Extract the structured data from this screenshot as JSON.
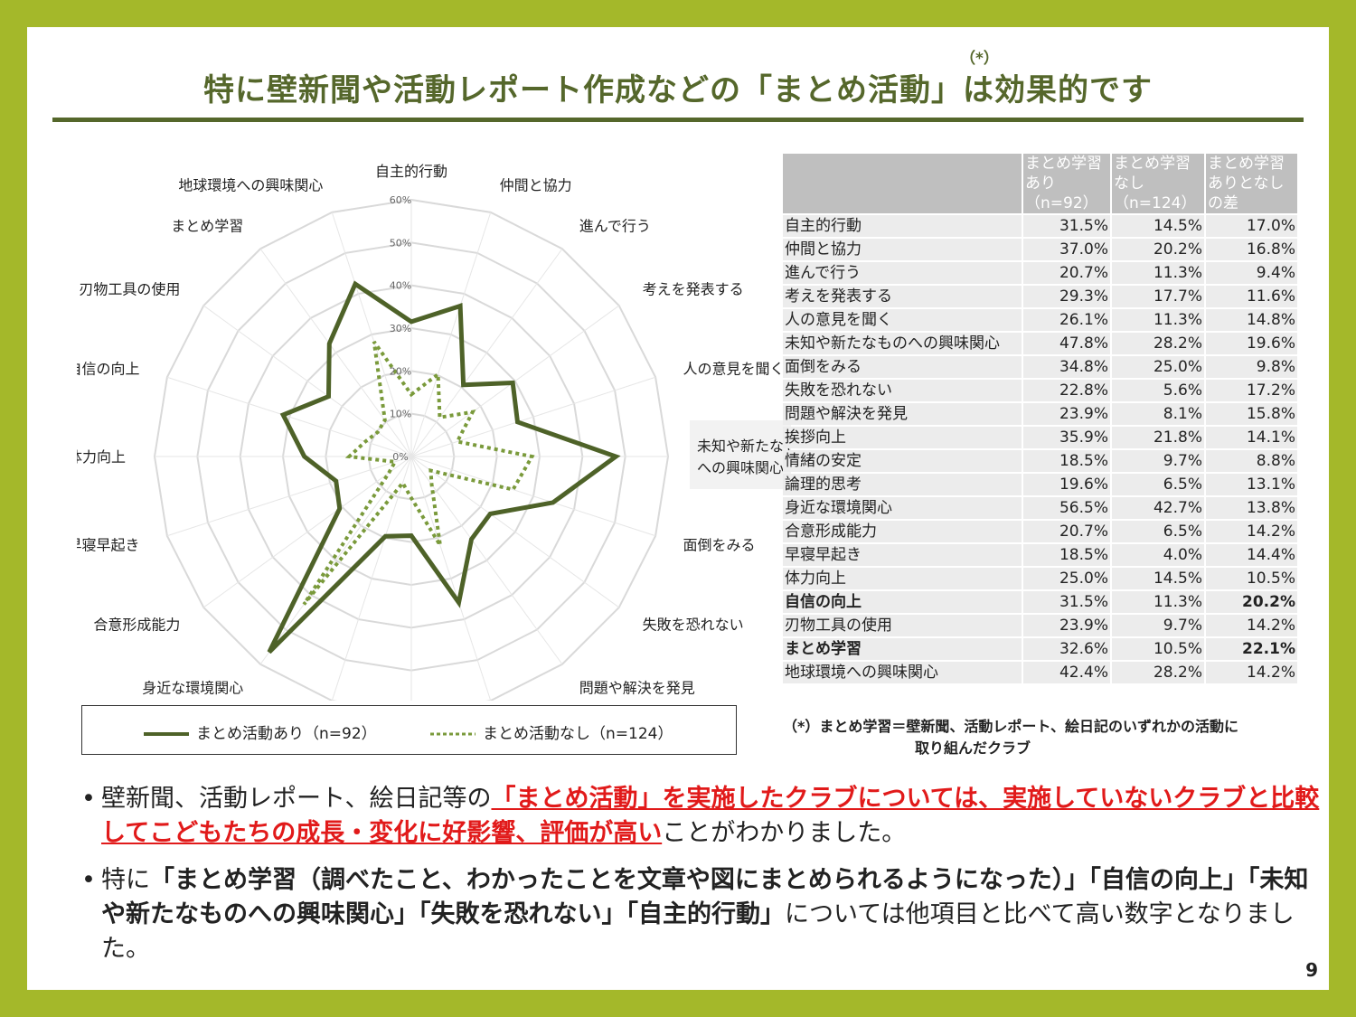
{
  "title": {
    "text": "特に壁新聞や活動レポート作成などの「まとめ活動」は効果的です",
    "mark": "（*）"
  },
  "chart_data": {
    "type": "radar",
    "categories": [
      "自主的行動",
      "仲間と協力",
      "進んで行う",
      "考えを発表する",
      "人の意見を聞く",
      "未知や新たなもの\nへの興味関心",
      "面倒をみる",
      "失敗を恐れない",
      "問題や解決を発見",
      "挨拶向上",
      "情緒の安定",
      "論理的思考",
      "身近な環境関心",
      "合意形成能力",
      "早寝早起き",
      "体力向上",
      "自信の向上",
      "刃物工具の使用",
      "まとめ学習",
      "地球環境への興味関心"
    ],
    "radial_ticks": [
      "0%",
      "10%",
      "20%",
      "30%",
      "40%",
      "50%",
      "60%"
    ],
    "rmax": 60,
    "series": [
      {
        "name": "まとめ活動あり（n=92）",
        "color": "#4e6228",
        "style": "solid",
        "values": [
          31.5,
          37.0,
          20.7,
          29.3,
          26.1,
          47.8,
          34.8,
          22.8,
          23.9,
          35.9,
          18.5,
          19.6,
          56.5,
          20.7,
          18.5,
          25.0,
          31.5,
          23.9,
          32.6,
          42.4
        ]
      },
      {
        "name": "まとめ活動なし（n=124）",
        "color": "#7a9a3b",
        "style": "dotted",
        "values": [
          14.5,
          20.2,
          11.3,
          17.7,
          11.3,
          28.2,
          25.0,
          5.6,
          8.1,
          21.8,
          9.7,
          6.5,
          42.7,
          6.5,
          4.0,
          14.5,
          11.3,
          9.7,
          10.5,
          28.2
        ]
      }
    ]
  },
  "table": {
    "headers": [
      "",
      "まとめ学習あり（n=92）",
      "まとめ学習なし（n=124）",
      "まとめ学習ありとなしの差"
    ],
    "rows": [
      {
        "label": "自主的行動",
        "a": "31.5%",
        "b": "14.5%",
        "diff": "17.0%",
        "hl": "red"
      },
      {
        "label": "仲間と協力",
        "a": "37.0%",
        "b": "20.2%",
        "diff": "16.8%",
        "hl": ""
      },
      {
        "label": "進んで行う",
        "a": "20.7%",
        "b": "11.3%",
        "diff": "9.4%",
        "hl": ""
      },
      {
        "label": "考えを発表する",
        "a": "29.3%",
        "b": "17.7%",
        "diff": "11.6%",
        "hl": ""
      },
      {
        "label": "人の意見を聞く",
        "a": "26.1%",
        "b": "11.3%",
        "diff": "14.8%",
        "hl": ""
      },
      {
        "label": "未知や新たなものへの興味関心",
        "a": "47.8%",
        "b": "28.2%",
        "diff": "19.6%",
        "hl": "red"
      },
      {
        "label": "面倒をみる",
        "a": "34.8%",
        "b": "25.0%",
        "diff": "9.8%",
        "hl": ""
      },
      {
        "label": "失敗を恐れない",
        "a": "22.8%",
        "b": "5.6%",
        "diff": "17.2%",
        "hl": "red"
      },
      {
        "label": "問題や解決を発見",
        "a": "23.9%",
        "b": "8.1%",
        "diff": "15.8%",
        "hl": ""
      },
      {
        "label": "挨拶向上",
        "a": "35.9%",
        "b": "21.8%",
        "diff": "14.1%",
        "hl": ""
      },
      {
        "label": "情緒の安定",
        "a": "18.5%",
        "b": "9.7%",
        "diff": "8.8%",
        "hl": ""
      },
      {
        "label": "論理的思考",
        "a": "19.6%",
        "b": "6.5%",
        "diff": "13.1%",
        "hl": ""
      },
      {
        "label": "身近な環境関心",
        "a": "56.5%",
        "b": "42.7%",
        "diff": "13.8%",
        "hl": ""
      },
      {
        "label": "合意形成能力",
        "a": "20.7%",
        "b": "6.5%",
        "diff": "14.2%",
        "hl": ""
      },
      {
        "label": "早寝早起き",
        "a": "18.5%",
        "b": "4.0%",
        "diff": "14.4%",
        "hl": ""
      },
      {
        "label": "体力向上",
        "a": "25.0%",
        "b": "14.5%",
        "diff": "10.5%",
        "hl": ""
      },
      {
        "label": "自信の向上",
        "a": "31.5%",
        "b": "11.3%",
        "diff": "20.2%",
        "hl": "redbold"
      },
      {
        "label": "刃物工具の使用",
        "a": "23.9%",
        "b": "9.7%",
        "diff": "14.2%",
        "hl": ""
      },
      {
        "label": "まとめ学習",
        "a": "32.6%",
        "b": "10.5%",
        "diff": "22.1%",
        "hl": "redbold"
      },
      {
        "label": "地球環境への興味関心",
        "a": "42.4%",
        "b": "28.2%",
        "diff": "14.2%",
        "hl": ""
      }
    ]
  },
  "note": {
    "line1": "（*）まとめ学習＝壁新聞、活動レポート、絵日記のいずれかの活動に",
    "line2": "取り組んだクラブ"
  },
  "bullets": {
    "b1": {
      "pre": "壁新聞、活動レポート、絵日記等の",
      "emph": "「まとめ活動」を実施したクラブについては、実施していないクラブと比較してこどもたちの成長・変化に好影響、評価が高い",
      "post": "ことがわかりました。"
    },
    "b2": {
      "pre": "特に",
      "emph": "「まとめ学習（調べたこと、わかったことを文章や図にまとめられるようになった）」「自信の向上」「未知や新たなものへの興味関心」「失敗を恐れない」「自主的行動」",
      "post": "については他項目と比べて高い数字となりました。"
    }
  },
  "page_number": "9"
}
